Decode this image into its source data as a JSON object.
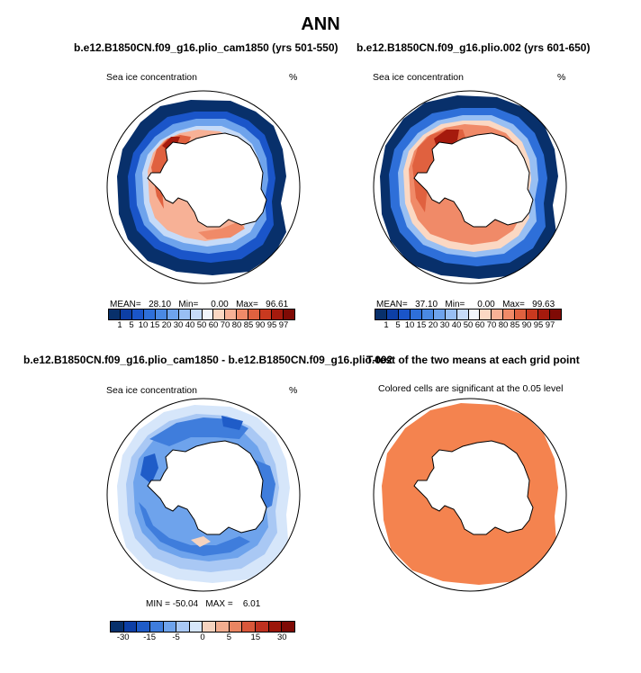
{
  "figure": {
    "title": "ANN",
    "panel_tl": {
      "title": "b.e12.B1850CN.f09_g16.plio_cam1850 (yrs 501-550)",
      "left_label": "Sea ice concentration",
      "right_label": "%",
      "stats_text": "MEAN=   28.10   Min=     0.00   Max=   96.61"
    },
    "panel_tr": {
      "title": "b.e12.B1850CN.f09_g16.plio.002 (yrs 601-650)",
      "left_label": "Sea ice concentration",
      "right_label": "%",
      "stats_text": "MEAN=   37.10   Min=     0.00   Max=   99.63"
    },
    "panel_bl": {
      "title": "b.e12.B1850CN.f09_g16.plio_cam1850 - b.e12.B1850CN.f09_g16.plio.002",
      "left_label": "Sea ice concentration",
      "right_label": "%",
      "stats_text": "MIN = -50.04   MAX =    6.01"
    },
    "panel_br": {
      "title": "T-test of the two means at each grid point",
      "subtitle": "Colored cells are significant at the 0.05 level"
    },
    "colorbar_abs": {
      "labels": [
        "1",
        "5",
        "10",
        "15",
        "20",
        "30",
        "40",
        "50",
        "60",
        "70",
        "80",
        "85",
        "90",
        "95",
        "97"
      ],
      "colors": [
        "#08306b",
        "#0d3fa6",
        "#1a55c9",
        "#2e6fd9",
        "#4a89e3",
        "#6ea3ec",
        "#98bff3",
        "#c6dbf8",
        "#f2f6fb",
        "#fbd8c3",
        "#f7b196",
        "#f08a68",
        "#e0613f",
        "#c9391f",
        "#a51a0d",
        "#7f0a05"
      ]
    },
    "colorbar_diff": {
      "labels": [
        "-30",
        "-15",
        "-5",
        "0",
        "5",
        "15",
        "30"
      ],
      "colors": [
        "#08306b",
        "#0d3fa6",
        "#1f5cc8",
        "#3f7ddc",
        "#6ea3ec",
        "#a9c8f4",
        "#d6e6fa",
        "#f5d3bf",
        "#f2ad8f",
        "#ea8562",
        "#d9573a",
        "#bf3120",
        "#9b1609",
        "#7f0a05"
      ]
    },
    "ttest_color": "#f4834f"
  }
}
